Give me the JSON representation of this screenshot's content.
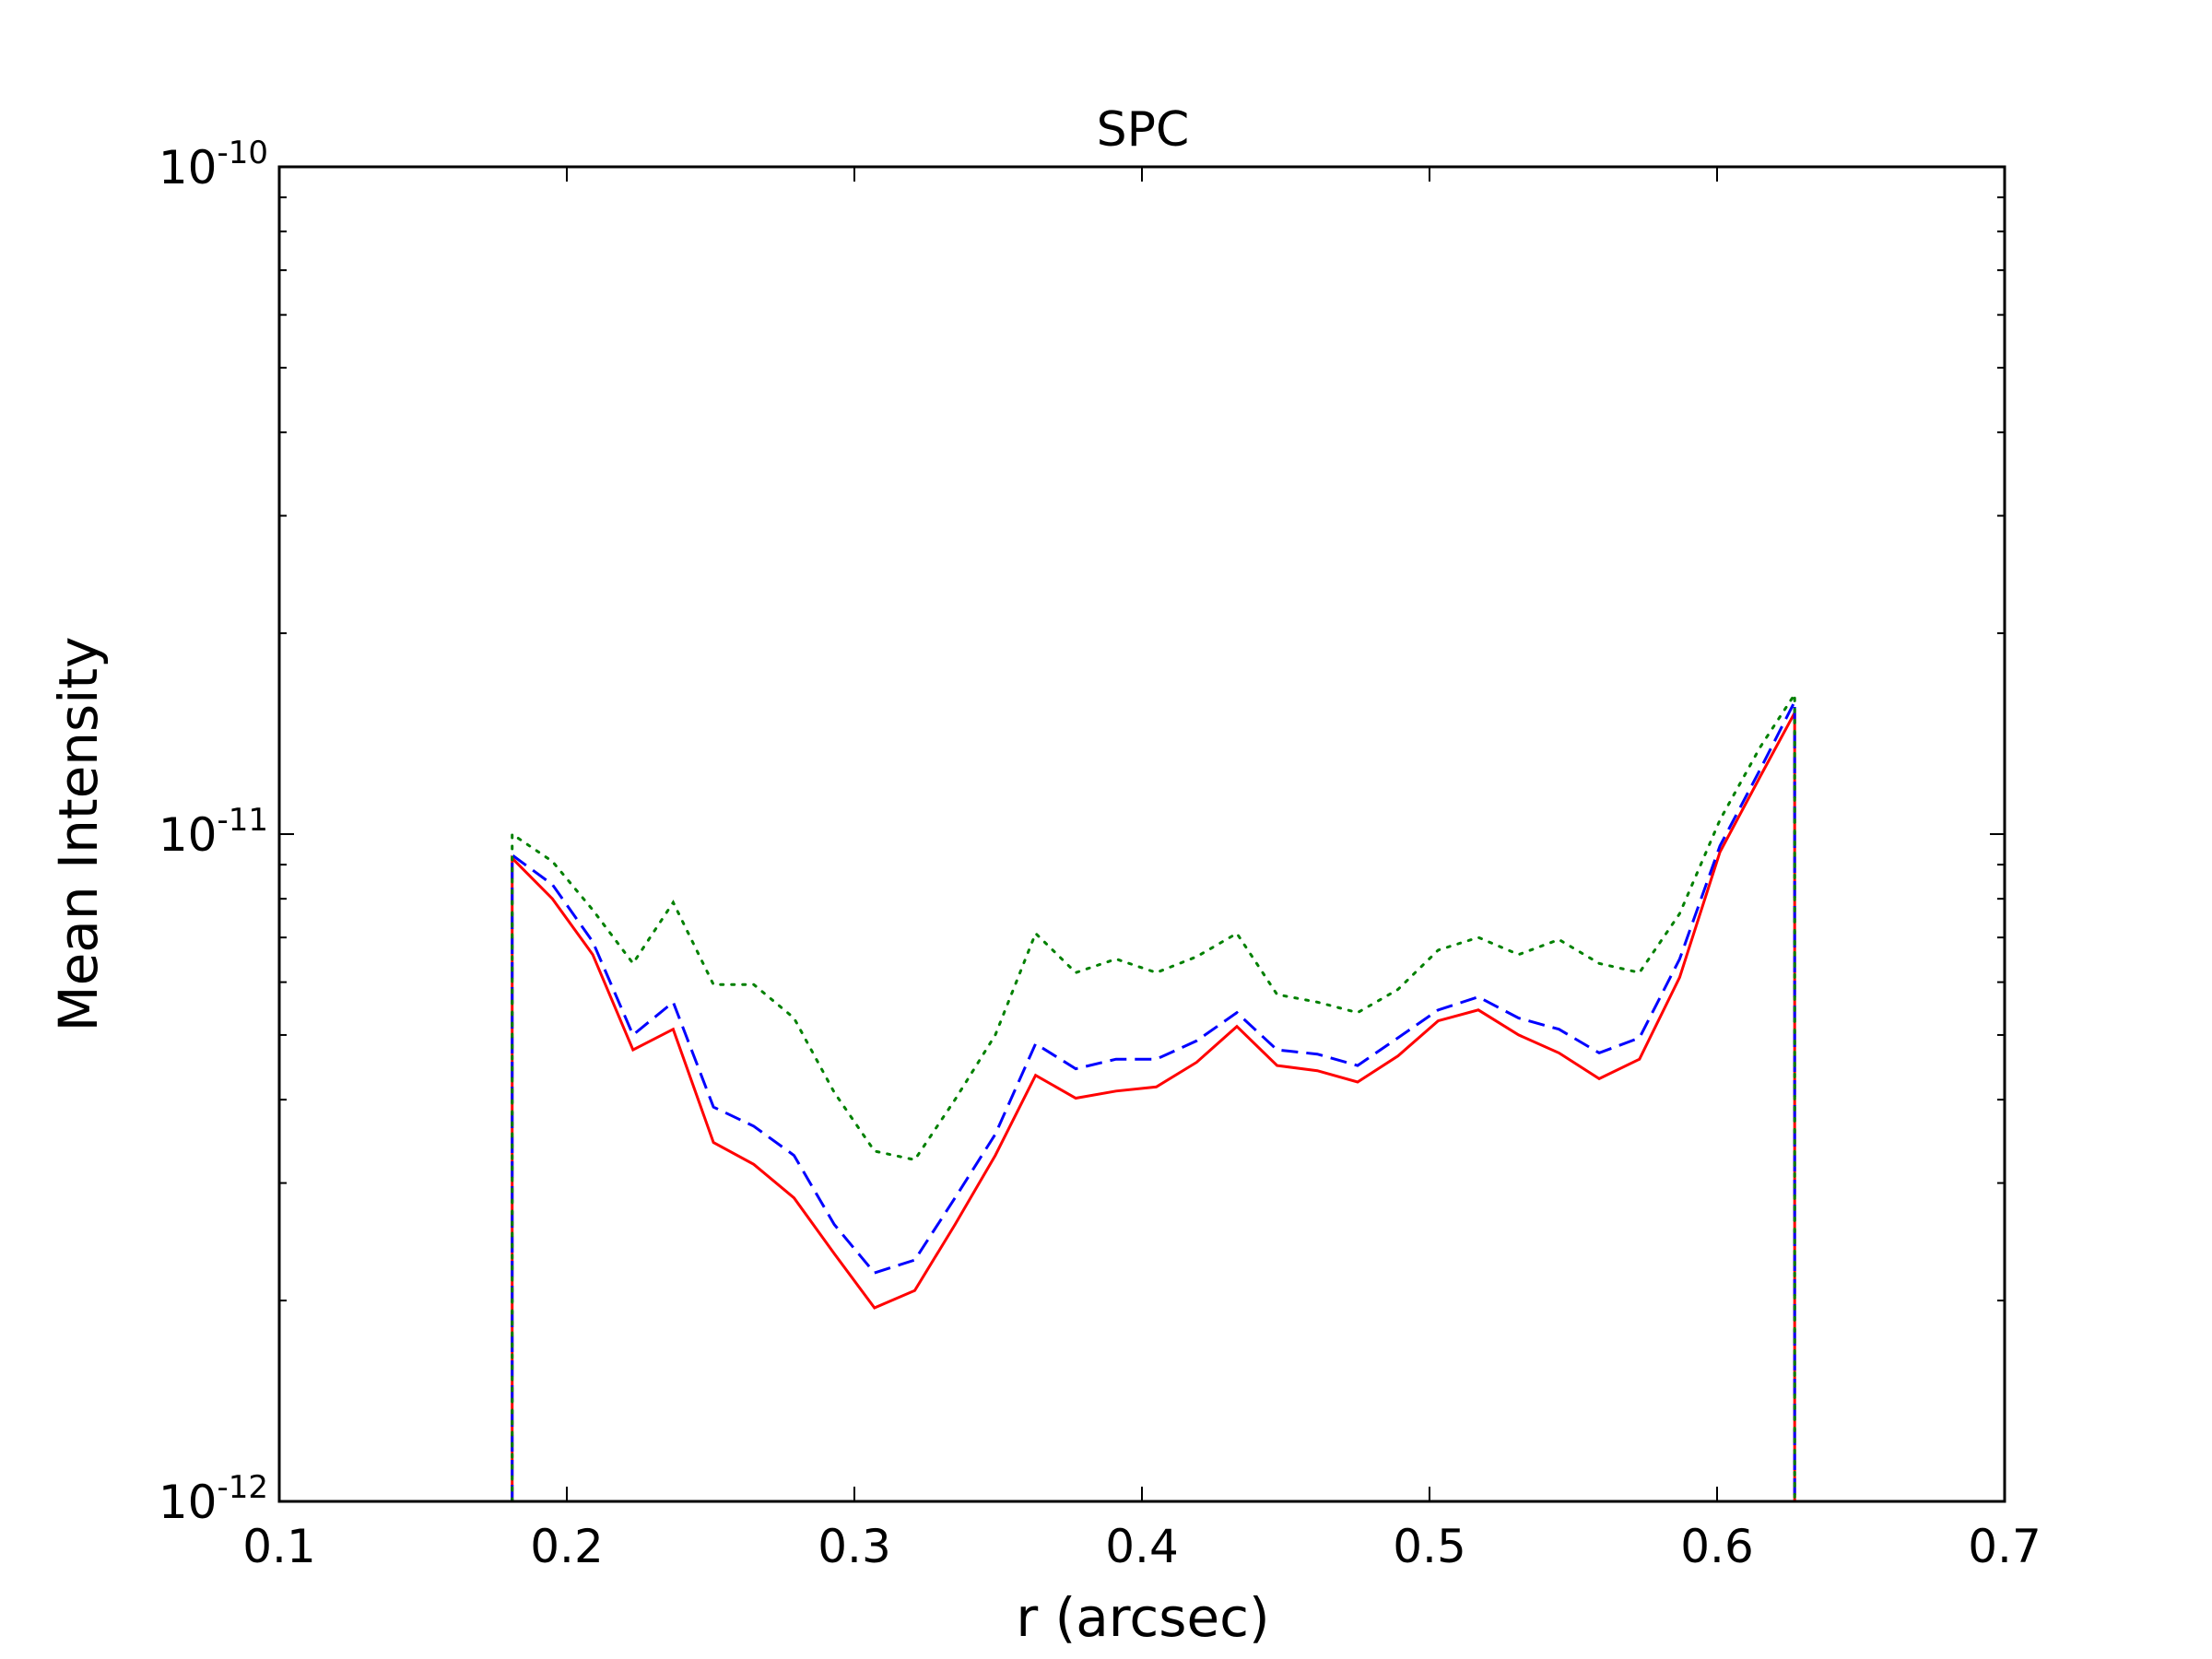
{
  "chart_data": {
    "type": "line",
    "title": "SPC",
    "xlabel": "r (arcsec)",
    "ylabel": "Mean Intensity",
    "xlim": [
      0.1,
      0.7
    ],
    "ylim": [
      1e-12,
      1e-10
    ],
    "yscale": "log",
    "grid": false,
    "x_ticks": [
      0.1,
      0.2,
      0.3,
      0.4,
      0.5,
      0.6,
      0.7
    ],
    "x_tick_labels": [
      "0.1",
      "0.2",
      "0.3",
      "0.4",
      "0.5",
      "0.6",
      "0.7"
    ],
    "y_ticks": [
      {
        "value": 1e-12,
        "base": "10",
        "exp": "-12"
      },
      {
        "value": 1e-11,
        "base": "10",
        "exp": "-11"
      },
      {
        "value": 1e-10,
        "base": "10",
        "exp": "-10"
      }
    ],
    "x": [
      0.181,
      0.181,
      0.195,
      0.209,
      0.223,
      0.237,
      0.251,
      0.265,
      0.279,
      0.293,
      0.307,
      0.321,
      0.335,
      0.349,
      0.363,
      0.377,
      0.391,
      0.405,
      0.419,
      0.433,
      0.447,
      0.461,
      0.475,
      0.489,
      0.503,
      0.517,
      0.531,
      0.545,
      0.559,
      0.573,
      0.587,
      0.601,
      0.615,
      0.627,
      0.627
    ],
    "series": [
      {
        "color": "#ff0000",
        "dash": "solid",
        "values": [
          1e-12,
          9.2e-12,
          8e-12,
          6.6e-12,
          4.75e-12,
          5.1e-12,
          3.45e-12,
          3.2e-12,
          2.85e-12,
          2.35e-12,
          1.95e-12,
          2.07e-12,
          2.6e-12,
          3.3e-12,
          4.35e-12,
          4.02e-12,
          4.12e-12,
          4.18e-12,
          4.55e-12,
          5.15e-12,
          4.5e-12,
          4.42e-12,
          4.25e-12,
          4.65e-12,
          5.25e-12,
          5.45e-12,
          5e-12,
          4.7e-12,
          4.3e-12,
          4.6e-12,
          6.1e-12,
          9.4e-12,
          1.22e-11,
          1.52e-11,
          1e-12
        ]
      },
      {
        "color": "#0000ff",
        "dash": "dashed",
        "values": [
          1e-12,
          9.3e-12,
          8.4e-12,
          6.9e-12,
          5e-12,
          5.6e-12,
          3.9e-12,
          3.65e-12,
          3.3e-12,
          2.6e-12,
          2.2e-12,
          2.3e-12,
          2.85e-12,
          3.55e-12,
          4.85e-12,
          4.45e-12,
          4.6e-12,
          4.6e-12,
          4.9e-12,
          5.4e-12,
          4.75e-12,
          4.68e-12,
          4.5e-12,
          4.95e-12,
          5.45e-12,
          5.7e-12,
          5.3e-12,
          5.1e-12,
          4.7e-12,
          4.95e-12,
          6.5e-12,
          9.6e-12,
          1.25e-11,
          1.58e-11,
          1e-12
        ]
      },
      {
        "color": "#008000",
        "dash": "dotted",
        "values": [
          1e-12,
          1e-11,
          9.1e-12,
          7.7e-12,
          6.4e-12,
          7.9e-12,
          5.95e-12,
          5.95e-12,
          5.3e-12,
          4.1e-12,
          3.35e-12,
          3.25e-12,
          4e-12,
          5e-12,
          7.1e-12,
          6.2e-12,
          6.5e-12,
          6.2e-12,
          6.55e-12,
          7.1e-12,
          5.75e-12,
          5.6e-12,
          5.4e-12,
          5.85e-12,
          6.7e-12,
          7e-12,
          6.6e-12,
          6.95e-12,
          6.4e-12,
          6.2e-12,
          7.6e-12,
          1.05e-11,
          1.35e-11,
          1.62e-11,
          1e-12
        ]
      }
    ]
  }
}
